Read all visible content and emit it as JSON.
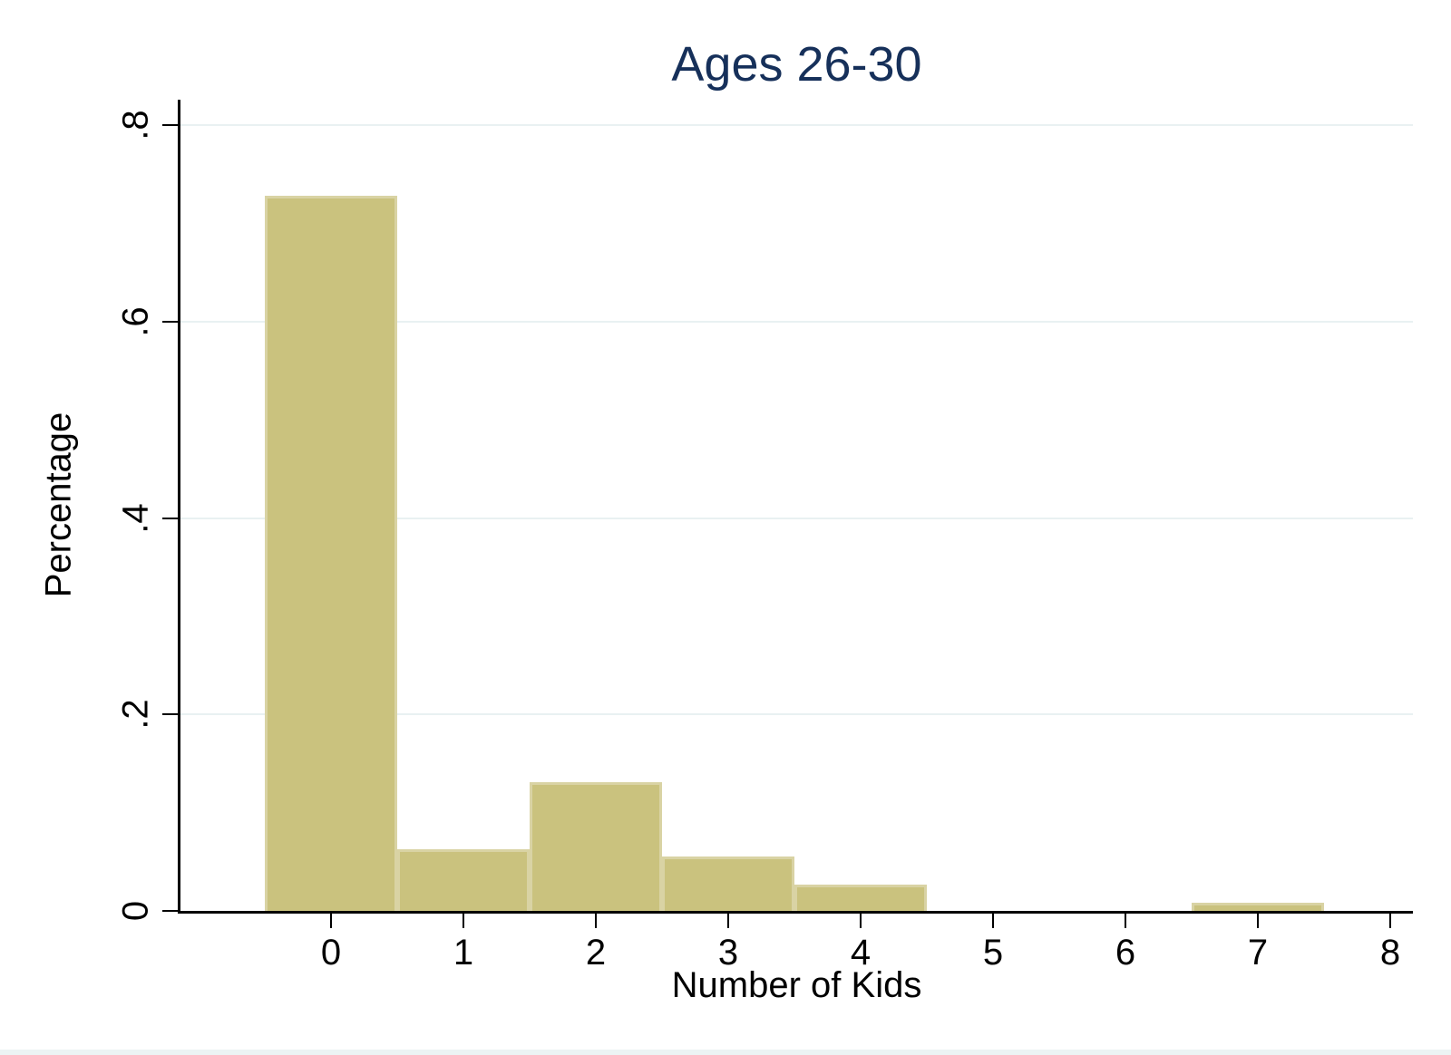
{
  "chart_data": {
    "type": "bar",
    "title": "Ages 26-30",
    "xlabel": "Number of Kids",
    "ylabel": "Percentage",
    "categories": [
      0,
      1,
      2,
      3,
      4,
      5,
      6,
      7
    ],
    "values": [
      0.728,
      0.063,
      0.131,
      0.055,
      0.027,
      0,
      0,
      0.008
    ],
    "bar_width": 1,
    "xticks": [
      0,
      1,
      2,
      3,
      4,
      5,
      6,
      7,
      8
    ],
    "xtick_labels": [
      "0",
      "1",
      "2",
      "3",
      "4",
      "5",
      "6",
      "7",
      "8"
    ],
    "ytick_values": [
      0,
      0.2,
      0.4,
      0.6,
      0.8
    ],
    "ytick_labels": [
      "0",
      ".2",
      ".4",
      ".6",
      ".8"
    ],
    "xlim": [
      -1.137,
      8.171
    ],
    "ylim": [
      0,
      0.826
    ],
    "grid": true,
    "legend": "none",
    "colors": {
      "bar_fill": "#cac27e",
      "bar_border": "#d9d3a4",
      "grid": "#e9f1f2",
      "axis": "#000000",
      "text": "#000000",
      "title": "#16305a",
      "footer_strip": "#ecf3f4"
    }
  }
}
